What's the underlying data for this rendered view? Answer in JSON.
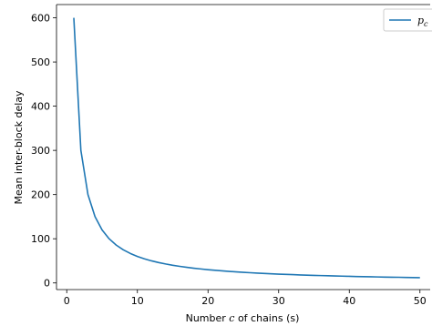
{
  "chart_data": {
    "type": "line",
    "xlabel_parts": [
      "Number ",
      "c",
      " of chains (s)"
    ],
    "ylabel": "Mean inter-block delay",
    "xlim": [
      -1.45,
      51.45
    ],
    "ylim": [
      -15,
      630
    ],
    "x_ticks": [
      0,
      10,
      20,
      30,
      40,
      50
    ],
    "y_ticks": [
      0,
      100,
      200,
      300,
      400,
      500,
      600
    ],
    "x_tick_labels": [
      "0",
      "10",
      "20",
      "30",
      "40",
      "50"
    ],
    "y_tick_labels": [
      "0",
      "100",
      "200",
      "300",
      "400",
      "500",
      "600"
    ],
    "grid": false,
    "legend_position": "top-right",
    "series": [
      {
        "name_main": "p",
        "name_sub": "c",
        "color": "#1f77b4",
        "x": [
          1,
          2,
          3,
          4,
          5,
          6,
          7,
          8,
          9,
          10,
          11,
          12,
          13,
          14,
          15,
          16,
          17,
          18,
          19,
          20,
          21,
          22,
          23,
          24,
          25,
          26,
          27,
          28,
          29,
          30,
          31,
          32,
          33,
          34,
          35,
          36,
          37,
          38,
          39,
          40,
          41,
          42,
          43,
          44,
          45,
          46,
          47,
          48,
          49,
          50
        ],
        "y": [
          600,
          300,
          200,
          150,
          120,
          100,
          85.7,
          75,
          66.7,
          60,
          54.5,
          50,
          46.2,
          42.9,
          40,
          37.5,
          35.3,
          33.3,
          31.6,
          30,
          28.6,
          27.3,
          26.1,
          25,
          24,
          23.1,
          22.2,
          21.4,
          20.7,
          20,
          19.4,
          18.8,
          18.2,
          17.6,
          17.1,
          16.7,
          16.2,
          15.8,
          15.4,
          15,
          14.6,
          14.3,
          14,
          13.6,
          13.3,
          13,
          12.8,
          12.5,
          12.2,
          12
        ]
      }
    ]
  }
}
